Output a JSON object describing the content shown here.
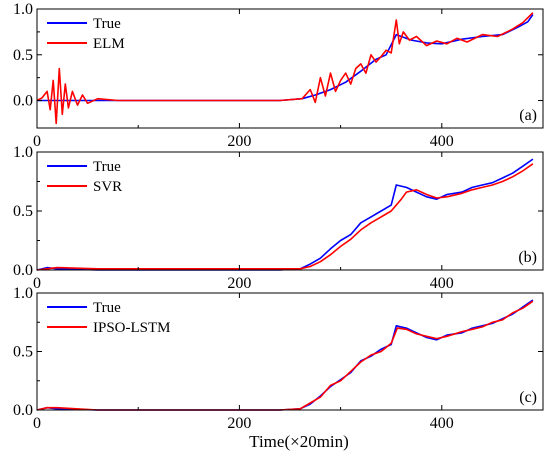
{
  "figure": {
    "xlabel": "Time(×20min)"
  },
  "colors": {
    "true": "#0000ff",
    "pred": "#ff0000"
  },
  "chart_data": [
    {
      "type": "line",
      "panel_label": "(a)",
      "xlim": [
        0,
        500
      ],
      "ylim": [
        -0.3,
        1.0
      ],
      "xticks": [
        0,
        200,
        400
      ],
      "xtick_labels": [
        "0",
        "200",
        "400"
      ],
      "yticks": [
        0.0,
        0.5,
        1.0
      ],
      "ytick_labels": [
        "0.0",
        "0.5",
        "1.0"
      ],
      "legend_position": "top-left",
      "grid": false,
      "series": [
        {
          "name": "True",
          "color": "#0000ff",
          "x": [
            0,
            20,
            60,
            120,
            180,
            240,
            262,
            275,
            290,
            305,
            320,
            335,
            345,
            355,
            360,
            370,
            385,
            400,
            420,
            440,
            460,
            475,
            485,
            490
          ],
          "y": [
            0.0,
            0.0,
            0.0,
            0.0,
            0.0,
            0.0,
            0.02,
            0.06,
            0.12,
            0.2,
            0.32,
            0.45,
            0.5,
            0.72,
            0.7,
            0.66,
            0.63,
            0.62,
            0.67,
            0.7,
            0.72,
            0.8,
            0.86,
            0.94
          ]
        },
        {
          "name": "ELM",
          "color": "#ff0000",
          "x": [
            0,
            5,
            10,
            13,
            16,
            19,
            22,
            25,
            28,
            31,
            35,
            40,
            45,
            50,
            60,
            80,
            120,
            180,
            240,
            262,
            270,
            275,
            280,
            285,
            290,
            295,
            300,
            305,
            310,
            315,
            320,
            325,
            330,
            335,
            340,
            345,
            350,
            355,
            358,
            362,
            368,
            375,
            385,
            395,
            405,
            415,
            425,
            440,
            455,
            470,
            480,
            490
          ],
          "y": [
            0.0,
            0.03,
            0.1,
            -0.1,
            0.22,
            -0.25,
            0.35,
            -0.15,
            0.18,
            -0.08,
            0.1,
            -0.05,
            0.06,
            -0.03,
            0.02,
            0.0,
            0.0,
            0.0,
            0.0,
            0.02,
            0.12,
            -0.02,
            0.25,
            0.05,
            0.3,
            0.1,
            0.22,
            0.3,
            0.18,
            0.35,
            0.4,
            0.3,
            0.5,
            0.42,
            0.48,
            0.55,
            0.52,
            0.88,
            0.62,
            0.75,
            0.66,
            0.7,
            0.6,
            0.65,
            0.62,
            0.68,
            0.64,
            0.72,
            0.7,
            0.78,
            0.85,
            0.96
          ]
        }
      ]
    },
    {
      "type": "line",
      "panel_label": "(b)",
      "xlim": [
        0,
        500
      ],
      "ylim": [
        0.0,
        1.0
      ],
      "xticks": [
        0,
        200,
        400
      ],
      "xtick_labels": [
        "0",
        "200",
        "400"
      ],
      "yticks": [
        0.0,
        0.5,
        1.0
      ],
      "ytick_labels": [
        "0.0",
        "0.5",
        "1.0"
      ],
      "legend_position": "top-left",
      "grid": false,
      "series": [
        {
          "name": "True",
          "color": "#0000ff",
          "x": [
            0,
            10,
            20,
            60,
            120,
            180,
            240,
            260,
            270,
            280,
            290,
            300,
            310,
            320,
            330,
            340,
            350,
            355,
            365,
            375,
            385,
            395,
            405,
            420,
            430,
            440,
            450,
            460,
            470,
            480,
            490
          ],
          "y": [
            0.0,
            0.02,
            0.01,
            0.0,
            0.0,
            0.0,
            0.0,
            0.01,
            0.05,
            0.1,
            0.18,
            0.25,
            0.3,
            0.4,
            0.45,
            0.5,
            0.55,
            0.72,
            0.7,
            0.66,
            0.62,
            0.6,
            0.64,
            0.66,
            0.7,
            0.72,
            0.74,
            0.78,
            0.82,
            0.88,
            0.94
          ]
        },
        {
          "name": "SVR",
          "color": "#ff0000",
          "x": [
            0,
            10,
            20,
            60,
            120,
            180,
            240,
            260,
            270,
            280,
            290,
            300,
            310,
            320,
            330,
            340,
            350,
            360,
            365,
            375,
            385,
            395,
            405,
            420,
            430,
            440,
            450,
            460,
            470,
            480,
            490
          ],
          "y": [
            0.0,
            0.01,
            0.02,
            0.01,
            0.01,
            0.01,
            0.01,
            0.01,
            0.03,
            0.07,
            0.13,
            0.2,
            0.26,
            0.34,
            0.4,
            0.45,
            0.5,
            0.6,
            0.66,
            0.68,
            0.64,
            0.61,
            0.62,
            0.65,
            0.68,
            0.7,
            0.72,
            0.75,
            0.79,
            0.84,
            0.9
          ]
        }
      ]
    },
    {
      "type": "line",
      "panel_label": "(c)",
      "xlim": [
        0,
        500
      ],
      "ylim": [
        0.0,
        1.0
      ],
      "xticks": [
        0,
        200,
        400
      ],
      "xtick_labels": [
        "0",
        "200",
        "400"
      ],
      "yticks": [
        0.0,
        0.5,
        1.0
      ],
      "ytick_labels": [
        "0.0",
        "0.5",
        "1.0"
      ],
      "legend_position": "top-left",
      "grid": false,
      "series": [
        {
          "name": "True",
          "color": "#0000ff",
          "x": [
            0,
            10,
            20,
            60,
            120,
            180,
            240,
            260,
            270,
            280,
            290,
            300,
            310,
            320,
            330,
            340,
            350,
            355,
            365,
            375,
            385,
            395,
            405,
            420,
            430,
            440,
            450,
            460,
            470,
            480,
            490
          ],
          "y": [
            0.0,
            0.02,
            0.01,
            0.0,
            0.0,
            0.0,
            0.0,
            0.01,
            0.05,
            0.12,
            0.2,
            0.26,
            0.32,
            0.42,
            0.46,
            0.52,
            0.56,
            0.72,
            0.7,
            0.66,
            0.62,
            0.6,
            0.64,
            0.66,
            0.7,
            0.72,
            0.74,
            0.78,
            0.82,
            0.88,
            0.94
          ]
        },
        {
          "name": "IPSO-LSTM",
          "color": "#ff0000",
          "x": [
            0,
            10,
            20,
            60,
            120,
            180,
            240,
            260,
            270,
            280,
            290,
            300,
            310,
            320,
            330,
            340,
            350,
            356,
            365,
            375,
            385,
            395,
            405,
            420,
            430,
            440,
            450,
            460,
            470,
            480,
            490
          ],
          "y": [
            0.0,
            0.02,
            0.02,
            0.0,
            0.0,
            0.0,
            0.0,
            0.01,
            0.06,
            0.11,
            0.21,
            0.25,
            0.33,
            0.41,
            0.47,
            0.5,
            0.57,
            0.7,
            0.69,
            0.65,
            0.63,
            0.61,
            0.63,
            0.67,
            0.69,
            0.71,
            0.75,
            0.77,
            0.83,
            0.87,
            0.93
          ]
        }
      ]
    }
  ]
}
